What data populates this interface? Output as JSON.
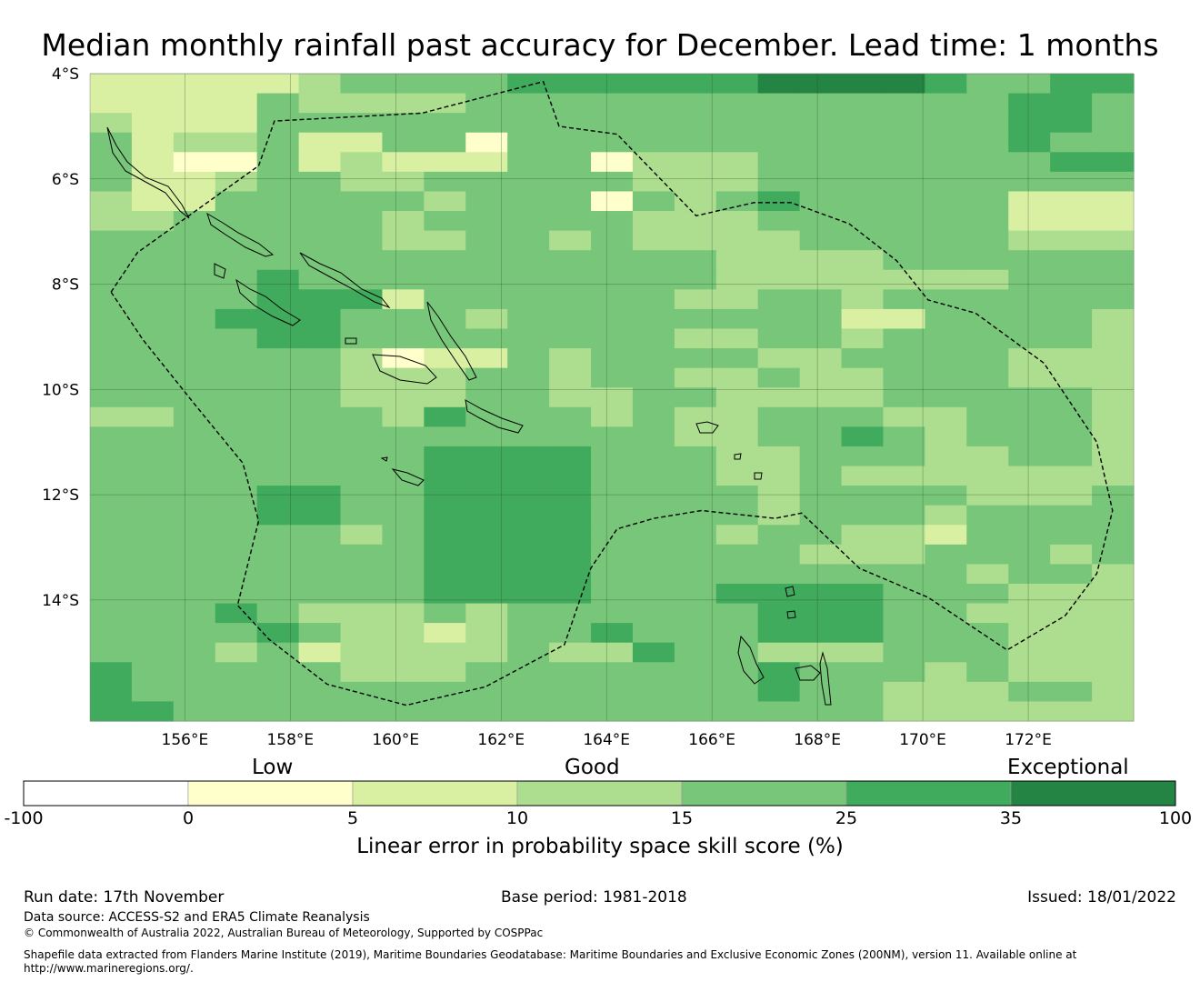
{
  "title": "Median monthly rainfall past accuracy for December. Lead time: 1 months",
  "map": {
    "lat_labels": [
      "4°S",
      "6°S",
      "8°S",
      "10°S",
      "12°S",
      "14°S"
    ],
    "lon_labels": [
      "156°E",
      "158°E",
      "160°E",
      "162°E",
      "164°E",
      "166°E",
      "168°E",
      "170°E",
      "172°E"
    ],
    "lon_range": [
      154.2,
      174.0
    ],
    "lat_range": [
      -4.0,
      -16.3
    ],
    "grid_lons": [
      156,
      158,
      160,
      162,
      164,
      166,
      168,
      170,
      172
    ],
    "grid_lats": [
      -4,
      -6,
      -8,
      -10,
      -12,
      -14
    ],
    "colors": [
      "#ffffff",
      "#ffffcc",
      "#d9f0a3",
      "#addd8e",
      "#78c679",
      "#41ab5d",
      "#238443"
    ],
    "skill_classes": [
      "2222234444555555666654455",
      "2222433334444444444444554",
      "3222444444444444444444554",
      "4233422441444444444444544",
      "4211423222441333444444455",
      "4223443344444333444444444",
      "3224444434441434544444222",
      "3344444344444333444444222",
      "4444444334434333344444333",
      "4444444444444443333444444",
      "4444544444444443333333444",
      "4444555244444433443444444",
      "4445554443444444442244443",
      "4444554444444433443444443",
      "4444443122434444334444333",
      "4444443334434433433444333",
      "4444443334433443333444443",
      "3344444354443433444334443",
      "4444444444444433445434443",
      "4444444455554443344433443",
      "4444444455554443343333333",
      "4444554455554444344443334",
      "4444554455554444344434444",
      "4444443455554443443324444",
      "4444444455554444433344434",
      "4444444455554444444443443",
      "4444444455554445555444333",
      "4445433343444444555443333",
      "4444543323445444555444333",
      "4443423333433544333444333",
      "5444443334444444544434333",
      "5444444444444444544333443",
      "5544444444444444444333333"
    ],
    "boundary_outer": [
      [
        154.6,
        -8.15
      ],
      [
        155.1,
        -7.4
      ],
      [
        157.4,
        -5.75
      ],
      [
        157.7,
        -4.9
      ],
      [
        160.5,
        -4.75
      ],
      [
        162.8,
        -4.15
      ],
      [
        163.1,
        -5.0
      ],
      [
        164.2,
        -5.15
      ],
      [
        165.7,
        -6.7
      ],
      [
        166.8,
        -6.45
      ],
      [
        167.5,
        -6.45
      ],
      [
        168.6,
        -6.85
      ],
      [
        169.5,
        -7.55
      ],
      [
        170.1,
        -8.3
      ],
      [
        171.0,
        -8.55
      ],
      [
        172.3,
        -9.5
      ],
      [
        173.3,
        -11.0
      ],
      [
        173.6,
        -12.3
      ],
      [
        173.3,
        -13.5
      ],
      [
        172.7,
        -14.3
      ],
      [
        171.6,
        -14.95
      ],
      [
        170.1,
        -13.95
      ],
      [
        168.8,
        -13.4
      ],
      [
        167.7,
        -12.35
      ],
      [
        167.2,
        -12.45
      ],
      [
        165.8,
        -12.3
      ],
      [
        164.9,
        -12.45
      ],
      [
        164.2,
        -12.65
      ],
      [
        163.7,
        -13.4
      ],
      [
        163.2,
        -14.85
      ],
      [
        161.7,
        -15.65
      ],
      [
        160.2,
        -16.0
      ],
      [
        158.7,
        -15.6
      ],
      [
        157.6,
        -14.75
      ],
      [
        157.0,
        -14.1
      ],
      [
        157.4,
        -12.5
      ],
      [
        157.1,
        -11.4
      ],
      [
        156.2,
        -10.3
      ],
      [
        155.2,
        -9.05
      ],
      [
        154.6,
        -8.15
      ]
    ]
  },
  "colorbar": {
    "category_labels": [
      "Low",
      "Good",
      "Exceptional"
    ],
    "ticks": [
      "-100",
      "0",
      "5",
      "10",
      "15",
      "25",
      "35",
      "100"
    ],
    "colors": [
      "#ffffff",
      "#ffffcc",
      "#d9f0a3",
      "#addd8e",
      "#78c679",
      "#41ab5d",
      "#238443"
    ],
    "title": "Linear error in probability space skill score (%)"
  },
  "footer": {
    "run_date": "Run date: 17th November",
    "base_period": "Base period: 1981-2018",
    "issued": "Issued: 18/01/2022",
    "data_source": "Data source: ACCESS-S2 and ERA5 Climate Reanalysis",
    "copyright": "© Commonwealth of Australia 2022, Australian Bureau of Meteorology, Supported by COSPPac",
    "shapefile_line1": "Shapefile data extracted from Flanders Marine Institute (2019), Maritime Boundaries Geodatabase: Maritime Boundaries and Exclusive Economic Zones (200NM), version 11. Available online at",
    "shapefile_line2": "http://www.marineregions.org/."
  }
}
